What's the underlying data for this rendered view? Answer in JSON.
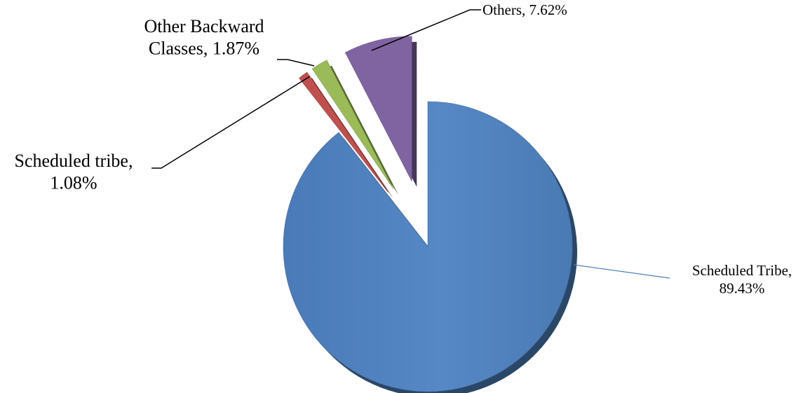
{
  "chart_data": {
    "type": "pie",
    "style": "3d-exploded",
    "slices": [
      {
        "name": "Scheduled Tribe",
        "value": 89.43,
        "label_line1": "Scheduled Tribe,",
        "label_line2": "89.43%",
        "color": "#4f81bd",
        "exploded": false
      },
      {
        "name": "Scheduled tribe",
        "value": 1.08,
        "label_line1": "Scheduled tribe,",
        "label_line2": "1.08%",
        "color": "#c0504d",
        "exploded": true
      },
      {
        "name": "Other Backward Classes",
        "value": 1.87,
        "label_line1": "Other Backward",
        "label_line2": "Classes, 1.87%",
        "color": "#9bbb59",
        "exploded": true
      },
      {
        "name": "Others",
        "value": 7.62,
        "label_line1": "Others, 7.62%",
        "label_line2": "",
        "color": "#8064a2",
        "exploded": true
      }
    ],
    "legend": "none"
  }
}
